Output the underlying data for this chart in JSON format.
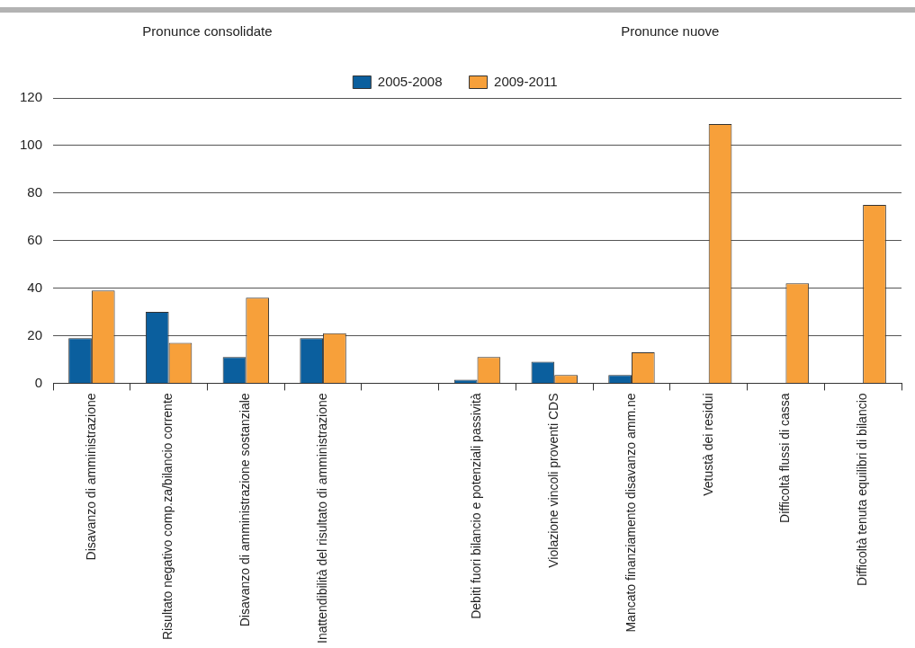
{
  "chart_data": {
    "type": "bar",
    "categories": [
      "Disavanzo di amministrazione",
      "Risultato negativo comp.za/bilancio corrente",
      "Disavanzo di amministrazione sostanziale",
      "Inattendibilità del risultato di amministrazione",
      null,
      "Debiti fuori bilancio e potenziali passività",
      "Violazione vincoli proventi CDS",
      "Mancato finanziamento disavanzo amm.ne",
      "Vetustà dei residui",
      "Difficoltà flussi di cassa",
      "Difficoltà tenuta equilibri di bilancio"
    ],
    "series": [
      {
        "name": "2005-2008",
        "color": "#0b5f9e",
        "values": [
          19,
          30,
          11,
          19,
          null,
          1.5,
          9,
          3.5,
          null,
          null,
          null
        ]
      },
      {
        "name": "2009-2011",
        "color": "#f7a03a",
        "values": [
          39,
          17,
          36,
          21,
          null,
          11,
          3.5,
          13,
          109,
          42,
          75
        ]
      }
    ],
    "annotations": [
      "Pronunce consolidate",
      "Pronunce nuove"
    ],
    "ylim": [
      0,
      120
    ],
    "yticks": [
      0,
      20,
      40,
      60,
      80,
      100,
      120
    ],
    "grid": "y",
    "legend": "top"
  }
}
